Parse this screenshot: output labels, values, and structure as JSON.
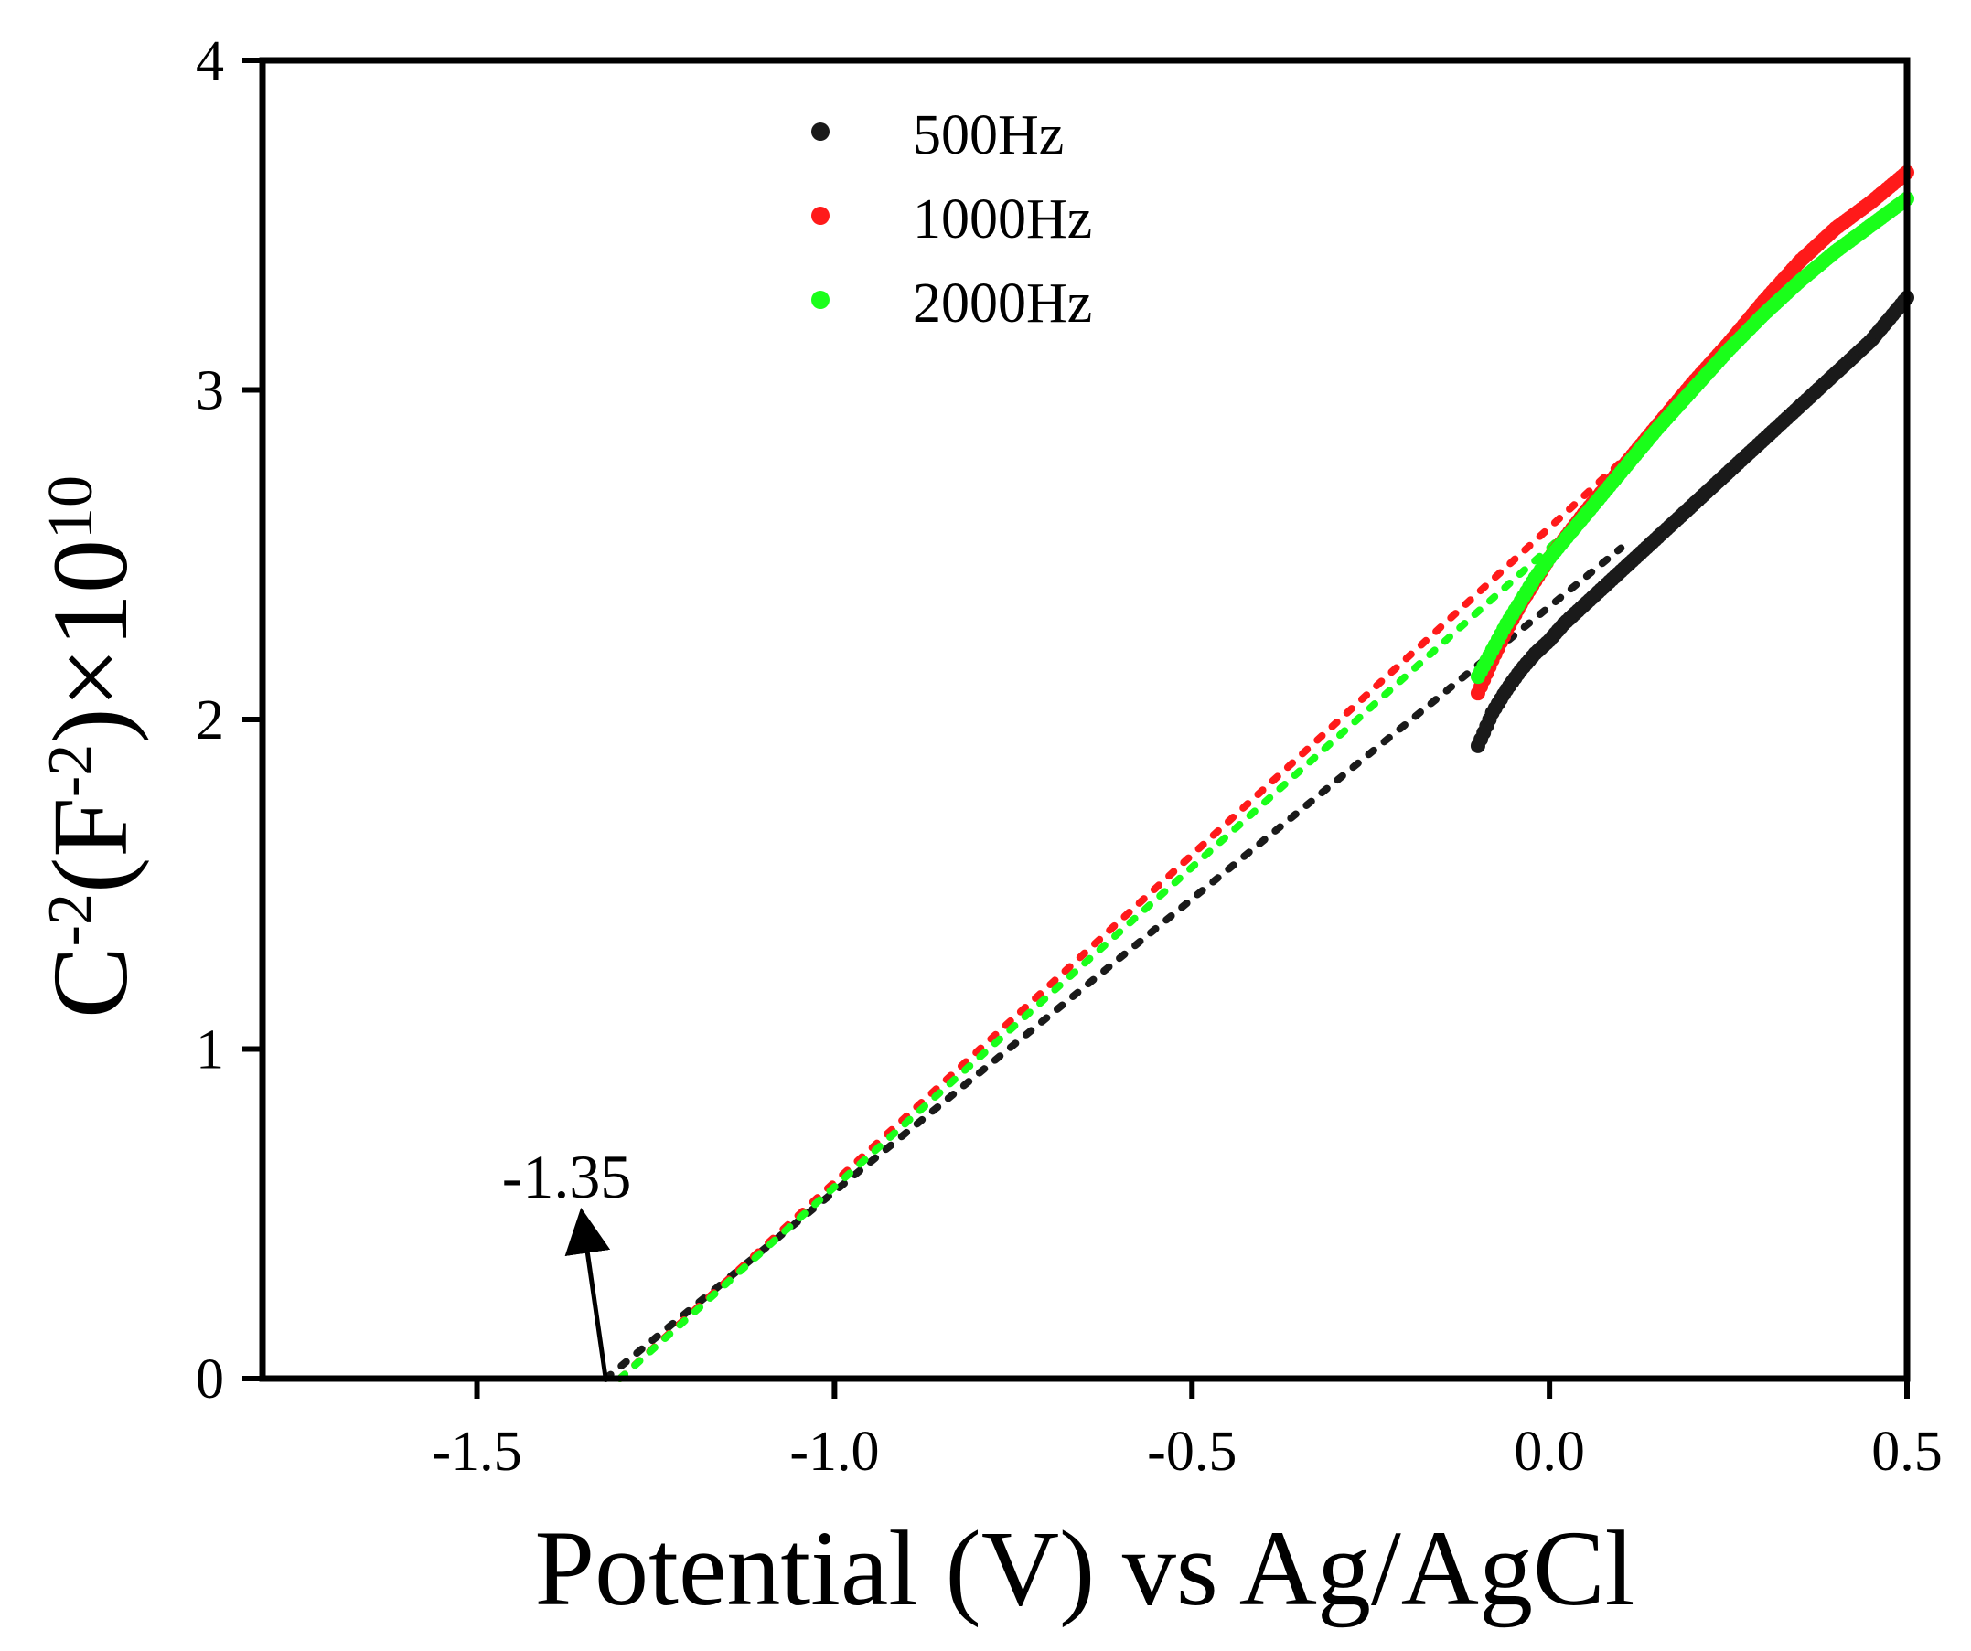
{
  "chart_data": {
    "type": "scatter",
    "title": "",
    "xlabel": "Potential (V) vs Ag/AgCl",
    "ylabel": {
      "base": "C",
      "sup1": "-2",
      "mid": "(F",
      "sup2": "-2",
      "end": ")×10",
      "sup3": "10"
    },
    "xlim": [
      -1.8,
      0.5
    ],
    "ylim": [
      0,
      4
    ],
    "x_ticks": [
      -1.5,
      -1.0,
      -0.5,
      0.0,
      0.5
    ],
    "x_tick_labels": [
      "-1.5",
      "-1.0",
      "-0.5",
      "0.0",
      "0.5"
    ],
    "y_ticks": [
      0,
      1,
      2,
      3,
      4
    ],
    "y_tick_labels": [
      "0",
      "1",
      "2",
      "3",
      "4"
    ],
    "legend_position": "top-center",
    "series": [
      {
        "name": "500Hz",
        "color": "#1a1a1a",
        "x": [
          -0.1,
          -0.09,
          -0.08,
          -0.06,
          -0.04,
          -0.02,
          0.0,
          0.02,
          0.05,
          0.08,
          0.1,
          0.15,
          0.2,
          0.25,
          0.3,
          0.35,
          0.4,
          0.45,
          0.5
        ],
        "y": [
          1.92,
          1.97,
          2.02,
          2.09,
          2.15,
          2.2,
          2.24,
          2.29,
          2.35,
          2.41,
          2.45,
          2.55,
          2.65,
          2.75,
          2.85,
          2.95,
          3.05,
          3.15,
          3.28
        ],
        "fit_line": {
          "x": [
            -1.32,
            0.1
          ],
          "y": [
            0.0,
            2.52
          ]
        }
      },
      {
        "name": "1000Hz",
        "color": "#ff1a1a",
        "x": [
          -0.1,
          -0.09,
          -0.08,
          -0.06,
          -0.04,
          -0.02,
          0.0,
          0.05,
          0.1,
          0.15,
          0.2,
          0.25,
          0.3,
          0.35,
          0.4,
          0.45,
          0.5
        ],
        "y": [
          2.08,
          2.13,
          2.18,
          2.27,
          2.35,
          2.42,
          2.49,
          2.63,
          2.76,
          2.89,
          3.02,
          3.14,
          3.27,
          3.39,
          3.49,
          3.57,
          3.66
        ],
        "fit_line": {
          "x": [
            -1.3,
            0.18
          ],
          "y": [
            0.0,
            2.94
          ]
        }
      },
      {
        "name": "2000Hz",
        "color": "#1aff1a",
        "x": [
          -0.1,
          -0.09,
          -0.08,
          -0.06,
          -0.04,
          -0.02,
          0.0,
          0.05,
          0.1,
          0.15,
          0.2,
          0.25,
          0.3,
          0.35,
          0.4,
          0.45,
          0.5
        ],
        "y": [
          2.13,
          2.17,
          2.21,
          2.29,
          2.36,
          2.43,
          2.49,
          2.62,
          2.75,
          2.88,
          3.0,
          3.12,
          3.23,
          3.33,
          3.42,
          3.5,
          3.58
        ],
        "fit_line": {
          "x": [
            -1.3,
            0.02
          ],
          "y": [
            0.0,
            2.56
          ]
        }
      }
    ],
    "annotations": [
      {
        "text": "-1.35",
        "arrow_from": [
          -1.32,
          0.0
        ],
        "arrow_to": [
          -1.35,
          0.45
        ]
      }
    ]
  }
}
